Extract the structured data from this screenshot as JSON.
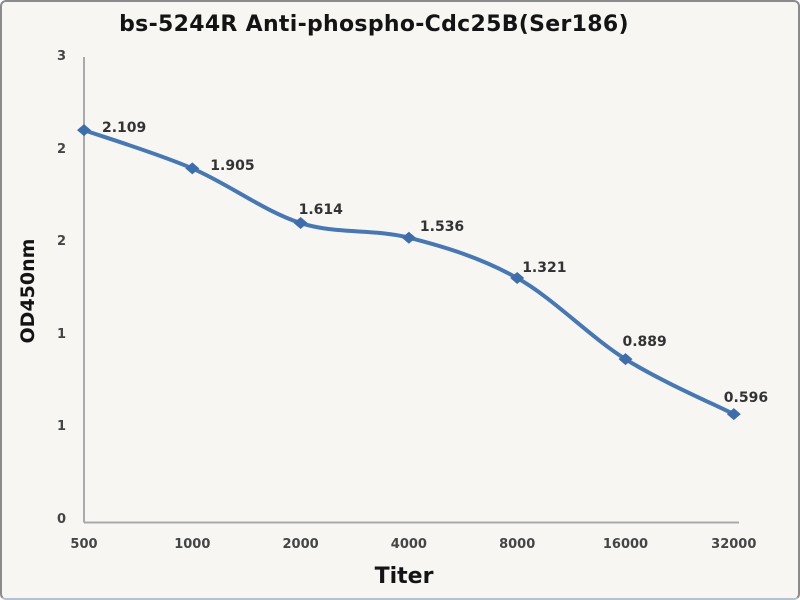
{
  "chart_data": {
    "type": "line",
    "title": "bs-5244R Anti-phospho-Cdc25B(Ser186)",
    "xlabel": "Titer",
    "ylabel": "OD450nm",
    "categories": [
      "500",
      "1000",
      "2000",
      "4000",
      "8000",
      "16000",
      "32000"
    ],
    "series": [
      {
        "name": "OD450nm",
        "values": [
          2.109,
          1.905,
          1.614,
          1.536,
          1.321,
          0.889,
          0.596
        ]
      }
    ],
    "data_labels": [
      "2.109",
      "1.905",
      "1.614",
      "1.536",
      "1.321",
      "0.889",
      "0.596"
    ],
    "y_tick_labels_as_shown": [
      "3",
      "2",
      "2",
      "1",
      "1",
      "0"
    ],
    "ylim": [
      0,
      3
    ],
    "grid": false,
    "legend": "none",
    "smooth_line": true,
    "marker": "diamond",
    "line_color": "#4878b2",
    "marker_color": "#3f6da9",
    "axis_color": "#a9a9a9",
    "background": "#f7f6f3"
  }
}
